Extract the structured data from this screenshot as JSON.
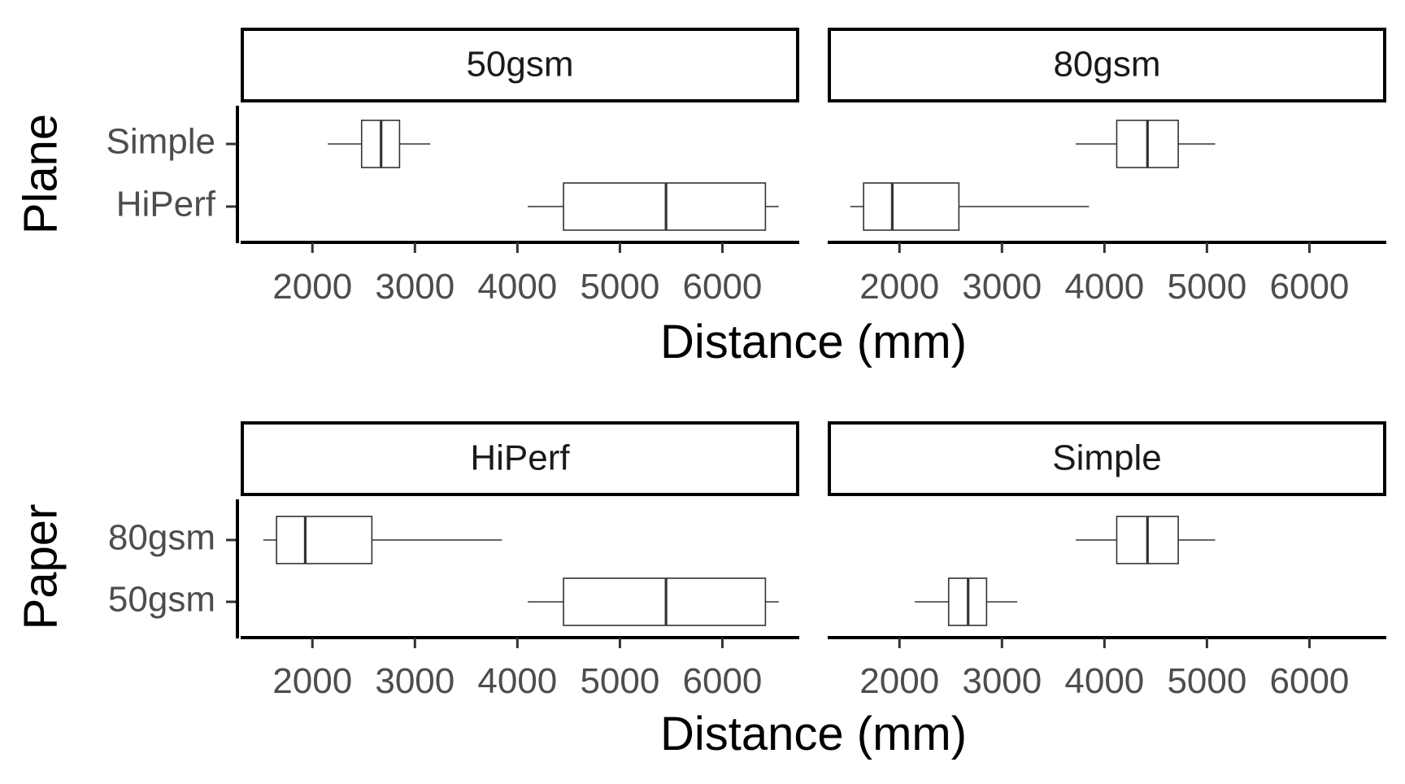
{
  "chart_data": [
    {
      "type": "boxplot",
      "orientation": "horizontal",
      "title": "",
      "row_label": "Plane",
      "xlabel": "Distance (mm)",
      "xlim": [
        1300,
        6750
      ],
      "x_ticks": [
        2000,
        3000,
        4000,
        5000,
        6000
      ],
      "categories": [
        "Simple",
        "HiPerf"
      ],
      "grid": false,
      "facets": [
        {
          "label": "50gsm",
          "boxes": [
            {
              "category": "Simple",
              "min": 2150,
              "q1": 2480,
              "median": 2670,
              "q3": 2850,
              "max": 3150
            },
            {
              "category": "HiPerf",
              "min": 4100,
              "q1": 4450,
              "median": 5450,
              "q3": 6420,
              "max": 6550
            }
          ]
        },
        {
          "label": "80gsm",
          "boxes": [
            {
              "category": "Simple",
              "min": 3720,
              "q1": 4120,
              "median": 4420,
              "q3": 4720,
              "max": 5080
            },
            {
              "category": "HiPerf",
              "min": 1520,
              "q1": 1650,
              "median": 1930,
              "q3": 2580,
              "max": 3850
            }
          ]
        }
      ]
    },
    {
      "type": "boxplot",
      "orientation": "horizontal",
      "title": "",
      "row_label": "Paper",
      "xlabel": "Distance (mm)",
      "xlim": [
        1300,
        6750
      ],
      "x_ticks": [
        2000,
        3000,
        4000,
        5000,
        6000
      ],
      "categories": [
        "80gsm",
        "50gsm"
      ],
      "grid": false,
      "facets": [
        {
          "label": "HiPerf",
          "boxes": [
            {
              "category": "80gsm",
              "min": 1520,
              "q1": 1650,
              "median": 1930,
              "q3": 2580,
              "max": 3850
            },
            {
              "category": "50gsm",
              "min": 4100,
              "q1": 4450,
              "median": 5450,
              "q3": 6420,
              "max": 6550
            }
          ]
        },
        {
          "label": "Simple",
          "boxes": [
            {
              "category": "80gsm",
              "min": 3720,
              "q1": 4120,
              "median": 4420,
              "q3": 4720,
              "max": 5080
            },
            {
              "category": "50gsm",
              "min": 2150,
              "q1": 2480,
              "median": 2670,
              "q3": 2850,
              "max": 3150
            }
          ]
        }
      ]
    }
  ]
}
